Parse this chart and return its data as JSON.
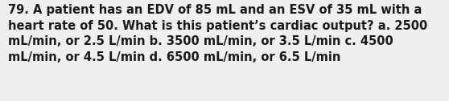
{
  "lines": [
    "79. A patient has an EDV of 85 mL and an ESV of 35 mL with a",
    "heart rate of 50. What is this patient’s cardiac output? a. 2500",
    "mL/min, or 2.5 L/min b. 3500 mL/min, or 3.5 L/min c. 4500",
    "mL/min, or 4.5 L/min d. 6500 mL/min, or 6.5 L/min"
  ],
  "background_color": "#efefef",
  "text_color": "#1a1a1a",
  "font_size": 10.5,
  "fig_width": 5.58,
  "fig_height": 1.26,
  "dpi": 100
}
